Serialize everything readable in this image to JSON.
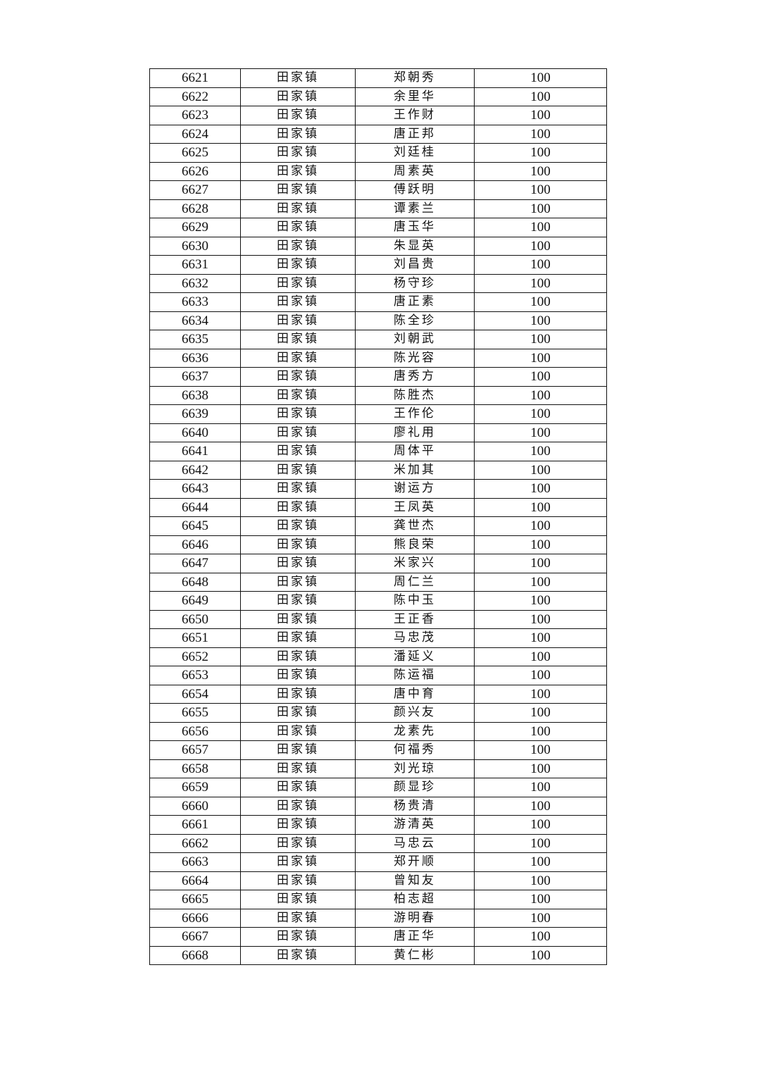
{
  "table": {
    "town": "田家镇",
    "amount": "100",
    "rows": [
      [
        "6621",
        "田家镇",
        "郑朝秀",
        "100"
      ],
      [
        "6622",
        "田家镇",
        "余里华",
        "100"
      ],
      [
        "6623",
        "田家镇",
        "王作财",
        "100"
      ],
      [
        "6624",
        "田家镇",
        "唐正邦",
        "100"
      ],
      [
        "6625",
        "田家镇",
        "刘廷桂",
        "100"
      ],
      [
        "6626",
        "田家镇",
        "周素英",
        "100"
      ],
      [
        "6627",
        "田家镇",
        "傅跃明",
        "100"
      ],
      [
        "6628",
        "田家镇",
        "谭素兰",
        "100"
      ],
      [
        "6629",
        "田家镇",
        "唐玉华",
        "100"
      ],
      [
        "6630",
        "田家镇",
        "朱显英",
        "100"
      ],
      [
        "6631",
        "田家镇",
        "刘昌贵",
        "100"
      ],
      [
        "6632",
        "田家镇",
        "杨守珍",
        "100"
      ],
      [
        "6633",
        "田家镇",
        "唐正素",
        "100"
      ],
      [
        "6634",
        "田家镇",
        "陈全珍",
        "100"
      ],
      [
        "6635",
        "田家镇",
        "刘朝武",
        "100"
      ],
      [
        "6636",
        "田家镇",
        "陈光容",
        "100"
      ],
      [
        "6637",
        "田家镇",
        "唐秀方",
        "100"
      ],
      [
        "6638",
        "田家镇",
        "陈胜杰",
        "100"
      ],
      [
        "6639",
        "田家镇",
        "王作伦",
        "100"
      ],
      [
        "6640",
        "田家镇",
        "廖礼用",
        "100"
      ],
      [
        "6641",
        "田家镇",
        "周体平",
        "100"
      ],
      [
        "6642",
        "田家镇",
        "米加其",
        "100"
      ],
      [
        "6643",
        "田家镇",
        "谢运方",
        "100"
      ],
      [
        "6644",
        "田家镇",
        "王凤英",
        "100"
      ],
      [
        "6645",
        "田家镇",
        "龚世杰",
        "100"
      ],
      [
        "6646",
        "田家镇",
        "熊良荣",
        "100"
      ],
      [
        "6647",
        "田家镇",
        "米家兴",
        "100"
      ],
      [
        "6648",
        "田家镇",
        "周仁兰",
        "100"
      ],
      [
        "6649",
        "田家镇",
        "陈中玉",
        "100"
      ],
      [
        "6650",
        "田家镇",
        "王正香",
        "100"
      ],
      [
        "6651",
        "田家镇",
        "马忠茂",
        "100"
      ],
      [
        "6652",
        "田家镇",
        "潘延义",
        "100"
      ],
      [
        "6653",
        "田家镇",
        "陈运福",
        "100"
      ],
      [
        "6654",
        "田家镇",
        "唐中育",
        "100"
      ],
      [
        "6655",
        "田家镇",
        "颜兴友",
        "100"
      ],
      [
        "6656",
        "田家镇",
        "龙素先",
        "100"
      ],
      [
        "6657",
        "田家镇",
        "何福秀",
        "100"
      ],
      [
        "6658",
        "田家镇",
        "刘光琼",
        "100"
      ],
      [
        "6659",
        "田家镇",
        "颜显珍",
        "100"
      ],
      [
        "6660",
        "田家镇",
        "杨贵清",
        "100"
      ],
      [
        "6661",
        "田家镇",
        "游清英",
        "100"
      ],
      [
        "6662",
        "田家镇",
        "马忠云",
        "100"
      ],
      [
        "6663",
        "田家镇",
        "郑开顺",
        "100"
      ],
      [
        "6664",
        "田家镇",
        "曾知友",
        "100"
      ],
      [
        "6665",
        "田家镇",
        "柏志超",
        "100"
      ],
      [
        "6666",
        "田家镇",
        "游明春",
        "100"
      ],
      [
        "6667",
        "田家镇",
        "唐正华",
        "100"
      ],
      [
        "6668",
        "田家镇",
        "黄仁彬",
        "100"
      ]
    ]
  }
}
